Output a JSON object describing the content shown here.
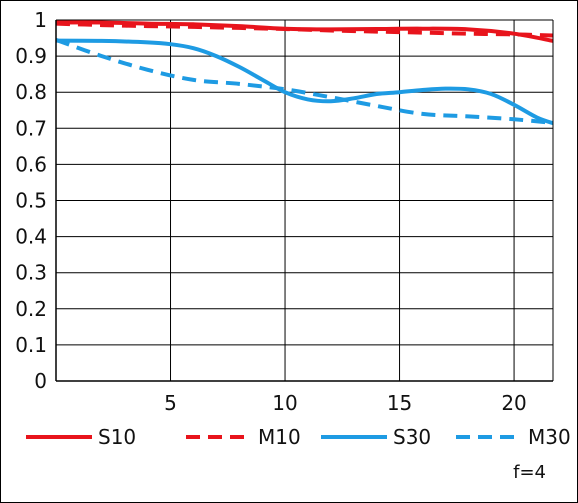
{
  "chart_data": {
    "type": "line",
    "title": "",
    "xlabel": "",
    "ylabel": "",
    "xlim": [
      0,
      21.7
    ],
    "ylim": [
      0,
      1
    ],
    "x_ticks": [
      5,
      10,
      15,
      20
    ],
    "y_ticks": [
      0,
      0.1,
      0.2,
      0.3,
      0.4,
      0.5,
      0.6,
      0.7,
      0.8,
      0.9,
      1
    ],
    "x_tick_labels": [
      "5",
      "10",
      "15",
      "20"
    ],
    "y_tick_labels": [
      "0",
      "0.1",
      "0.2",
      "0.3",
      "0.4",
      "0.5",
      "0.6",
      "0.7",
      "0.8",
      "0.9",
      "1"
    ],
    "grid": true,
    "legend_placement": "bottom",
    "annotation": "f=4",
    "series": [
      {
        "name": "S10",
        "color": "#e8141c",
        "dash": "solid",
        "x": [
          0,
          2,
          4,
          6,
          8,
          10,
          12,
          14,
          16,
          18,
          20,
          21.7
        ],
        "y": [
          0.993,
          0.993,
          0.99,
          0.988,
          0.983,
          0.976,
          0.974,
          0.975,
          0.976,
          0.974,
          0.962,
          0.942
        ]
      },
      {
        "name": "M10",
        "color": "#e8141c",
        "dash": "dashed",
        "x": [
          0,
          2,
          4,
          6,
          8,
          10,
          12,
          14,
          16,
          18,
          20,
          21.7
        ],
        "y": [
          0.99,
          0.986,
          0.983,
          0.981,
          0.978,
          0.975,
          0.971,
          0.968,
          0.965,
          0.962,
          0.96,
          0.957
        ]
      },
      {
        "name": "S30",
        "color": "#1e9be3",
        "dash": "solid",
        "x": [
          0,
          2,
          4,
          5,
          6,
          7,
          8,
          9,
          10,
          11,
          12,
          13,
          14,
          15,
          16,
          17,
          18,
          19,
          20,
          21,
          21.7
        ],
        "y": [
          0.943,
          0.942,
          0.938,
          0.933,
          0.922,
          0.9,
          0.87,
          0.835,
          0.8,
          0.78,
          0.775,
          0.783,
          0.795,
          0.8,
          0.806,
          0.81,
          0.808,
          0.795,
          0.765,
          0.73,
          0.714
        ]
      },
      {
        "name": "M30",
        "color": "#1e9be3",
        "dash": "dashed",
        "x": [
          0,
          2,
          4,
          6,
          8,
          10,
          12,
          14,
          16,
          18,
          20,
          21.7
        ],
        "y": [
          0.945,
          0.9,
          0.862,
          0.834,
          0.823,
          0.808,
          0.786,
          0.762,
          0.74,
          0.733,
          0.725,
          0.715
        ]
      }
    ]
  }
}
